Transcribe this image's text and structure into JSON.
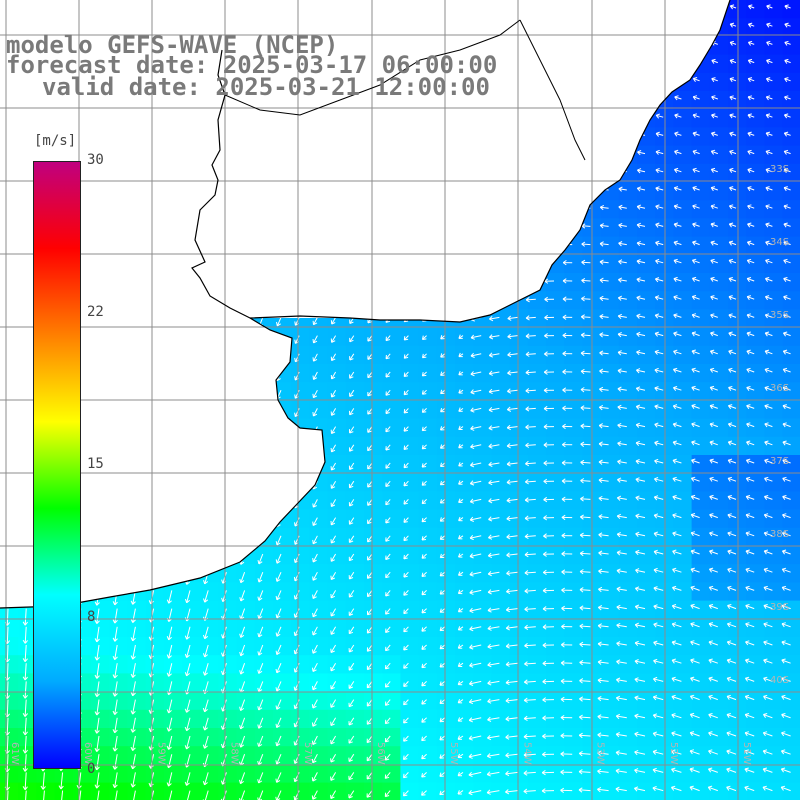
{
  "title": {
    "line1": "modelo GEFS-WAVE (NCEP)",
    "line2": "forecast date: 2025-03-17 06:00:00",
    "line3": "valid date: 2025-03-21 12:00:00"
  },
  "colorbar": {
    "units": "[m/s]",
    "ticks": [
      {
        "label": "30",
        "value": 30
      },
      {
        "label": "22",
        "value": 22
      },
      {
        "label": "15",
        "value": 15
      },
      {
        "label": "8",
        "value": 8
      },
      {
        "label": "0",
        "value": 0
      }
    ],
    "stops": [
      "#0000ff",
      "#00aaff",
      "#00ffff",
      "#00ff00",
      "#ffff00",
      "#ff7f00",
      "#ff0000",
      "#c0007f"
    ]
  },
  "map": {
    "lat_labels": [
      "33S",
      "34S",
      "35S",
      "36S",
      "37S",
      "38S",
      "39S",
      "40S"
    ],
    "lon_labels": [
      "61W",
      "60W",
      "59W",
      "58W",
      "57W",
      "56W",
      "55W",
      "54W",
      "53W",
      "52W",
      "51W"
    ],
    "land_color": "#ffffff",
    "grid_color": "#8c8c8c",
    "coast_color": "#000000"
  },
  "colors": {
    "title": "#7a7a7a",
    "arrow": "#ffffff"
  }
}
